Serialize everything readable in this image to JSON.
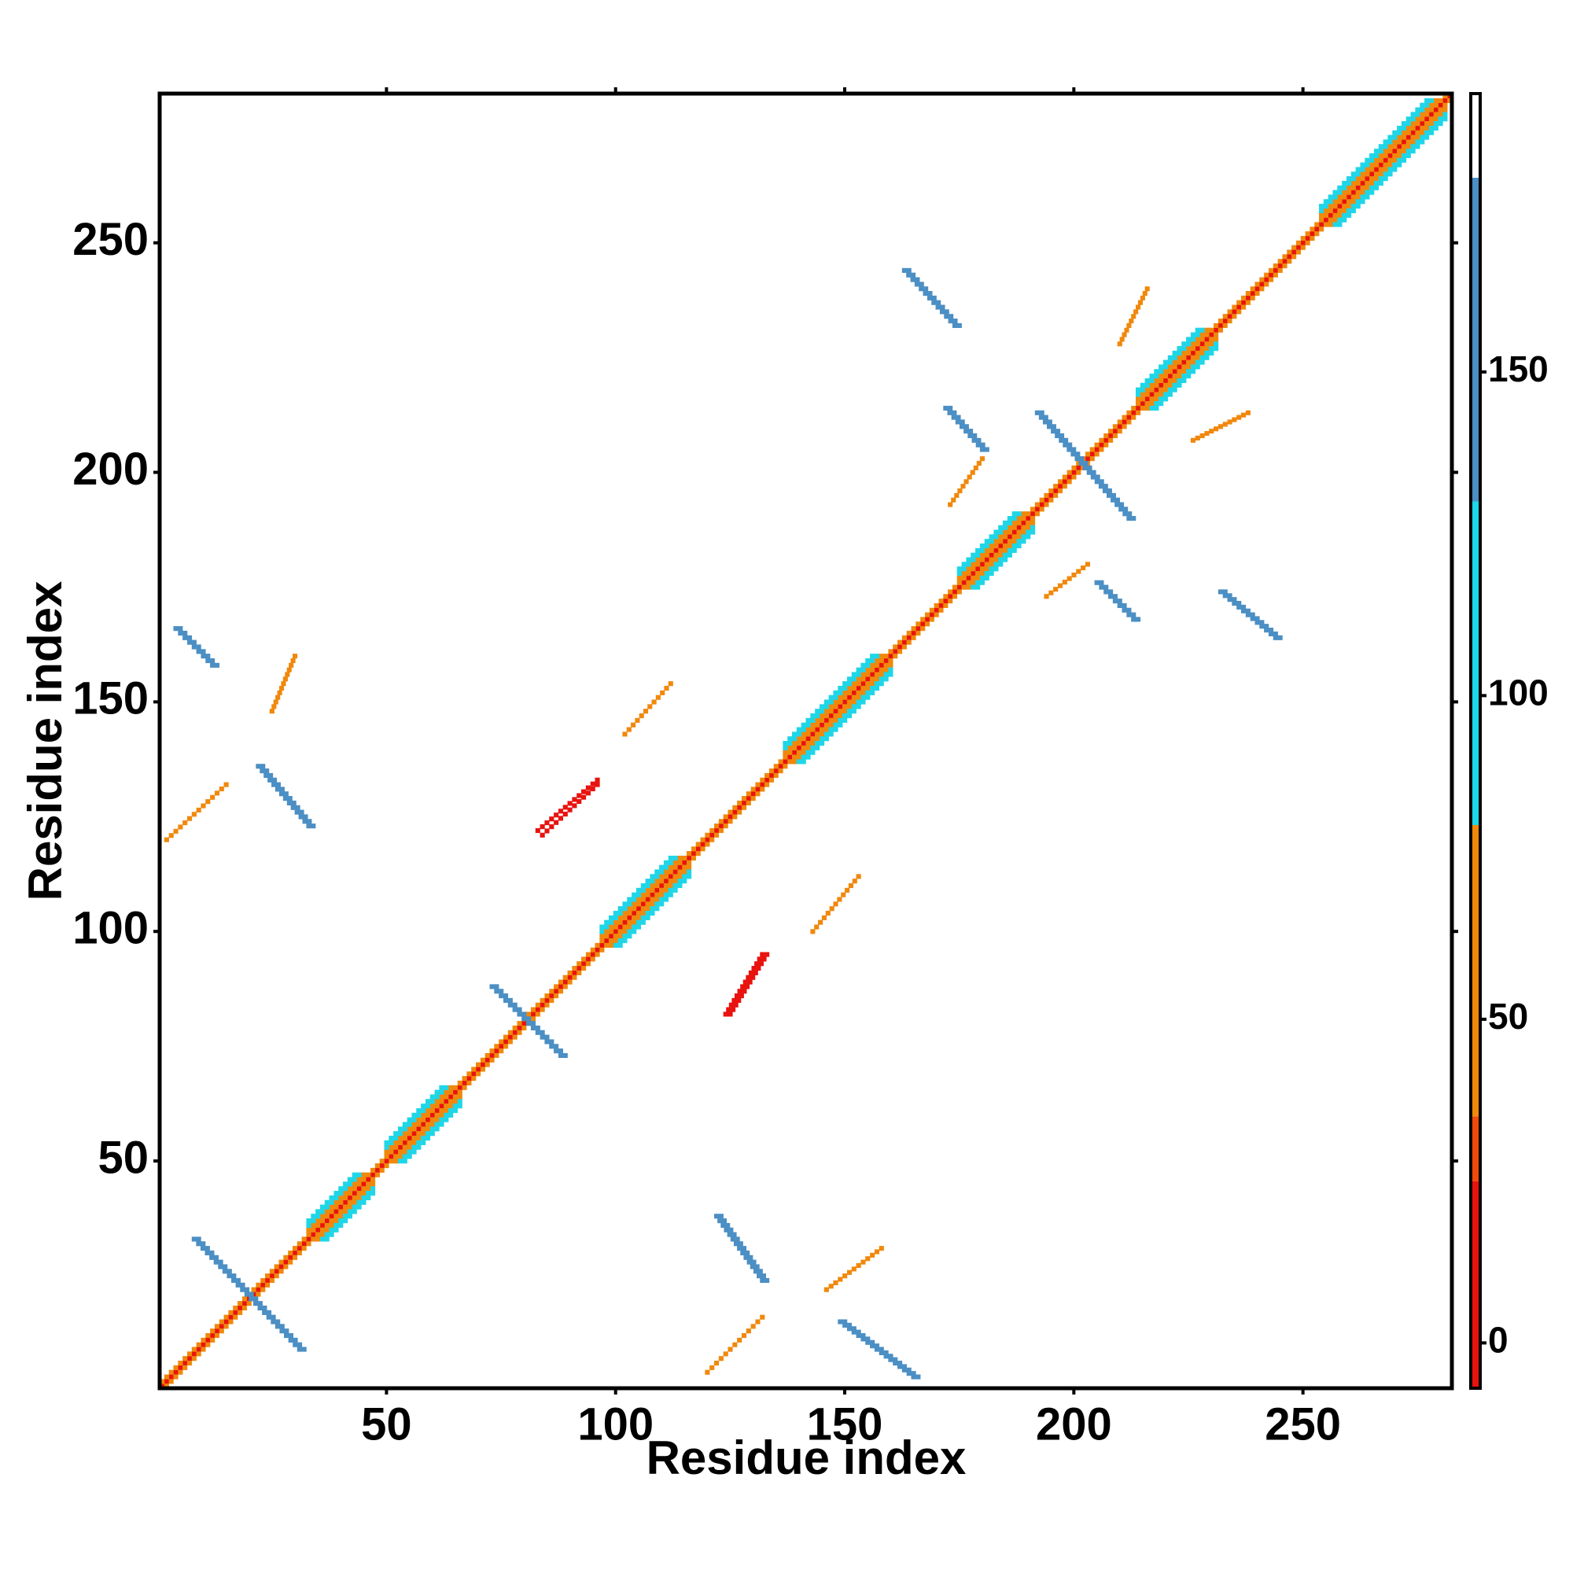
{
  "chart_data": {
    "type": "contact-map",
    "xlabel": "Residue index",
    "ylabel": "Residue index",
    "xlim": [
      1,
      282
    ],
    "ylim": [
      1,
      282
    ],
    "xticks": [
      50,
      100,
      150,
      200,
      250
    ],
    "yticks": [
      50,
      100,
      150,
      200,
      250
    ],
    "grid": false,
    "colorbar": {
      "lim": [
        -7,
        193
      ],
      "ticks": [
        0,
        50,
        100,
        150
      ],
      "segments": [
        {
          "range": [
            -7,
            25
          ],
          "color": "#e8130f"
        },
        {
          "range": [
            25,
            35
          ],
          "color": "#f04a0a"
        },
        {
          "range": [
            35,
            80
          ],
          "color": "#f0880c"
        },
        {
          "range": [
            80,
            130
          ],
          "color": "#1fd6e8"
        },
        {
          "range": [
            130,
            180
          ],
          "color": "#4b8fc4"
        },
        {
          "range": [
            180,
            193
          ],
          "color": "#ffffff"
        }
      ]
    },
    "features": [
      {
        "x": [
          1,
          282
        ],
        "y": [
          1,
          282
        ],
        "value": 0
      },
      {
        "x": [
          1,
          281
        ],
        "y": [
          2,
          282
        ],
        "value": 60
      },
      {
        "x": [
          2,
          282
        ],
        "y": [
          1,
          281
        ],
        "value": 60
      },
      {
        "x": [
          33,
          45
        ],
        "y": [
          35,
          47
        ],
        "value": 60
      },
      {
        "x": [
          35,
          47
        ],
        "y": [
          33,
          45
        ],
        "value": 60
      },
      {
        "x": [
          33,
          44
        ],
        "y": [
          36,
          47
        ],
        "value": 100
      },
      {
        "x": [
          36,
          47
        ],
        "y": [
          33,
          44
        ],
        "value": 100
      },
      {
        "x": [
          33,
          43
        ],
        "y": [
          37,
          47
        ],
        "value": 110
      },
      {
        "x": [
          37,
          47
        ],
        "y": [
          33,
          43
        ],
        "value": 110
      },
      {
        "x": [
          50,
          64
        ],
        "y": [
          52,
          66
        ],
        "value": 60
      },
      {
        "x": [
          52,
          66
        ],
        "y": [
          50,
          64
        ],
        "value": 60
      },
      {
        "x": [
          50,
          63
        ],
        "y": [
          53,
          66
        ],
        "value": 100
      },
      {
        "x": [
          53,
          66
        ],
        "y": [
          50,
          63
        ],
        "value": 100
      },
      {
        "x": [
          50,
          62
        ],
        "y": [
          54,
          66
        ],
        "value": 110
      },
      {
        "x": [
          54,
          66
        ],
        "y": [
          50,
          62
        ],
        "value": 110
      },
      {
        "x": [
          97,
          114
        ],
        "y": [
          99,
          116
        ],
        "value": 60
      },
      {
        "x": [
          99,
          116
        ],
        "y": [
          97,
          114
        ],
        "value": 60
      },
      {
        "x": [
          97,
          113
        ],
        "y": [
          100,
          116
        ],
        "value": 100
      },
      {
        "x": [
          100,
          116
        ],
        "y": [
          97,
          113
        ],
        "value": 100
      },
      {
        "x": [
          97,
          112
        ],
        "y": [
          101,
          116
        ],
        "value": 110
      },
      {
        "x": [
          101,
          116
        ],
        "y": [
          97,
          112
        ],
        "value": 110
      },
      {
        "x": [
          137,
          158
        ],
        "y": [
          139,
          160
        ],
        "value": 60
      },
      {
        "x": [
          139,
          160
        ],
        "y": [
          137,
          158
        ],
        "value": 60
      },
      {
        "x": [
          137,
          157
        ],
        "y": [
          140,
          160
        ],
        "value": 100
      },
      {
        "x": [
          140,
          160
        ],
        "y": [
          137,
          157
        ],
        "value": 100
      },
      {
        "x": [
          137,
          156
        ],
        "y": [
          141,
          160
        ],
        "value": 110
      },
      {
        "x": [
          141,
          160
        ],
        "y": [
          137,
          156
        ],
        "value": 110
      },
      {
        "x": [
          175,
          189
        ],
        "y": [
          177,
          191
        ],
        "value": 60
      },
      {
        "x": [
          177,
          191
        ],
        "y": [
          175,
          189
        ],
        "value": 60
      },
      {
        "x": [
          175,
          188
        ],
        "y": [
          178,
          191
        ],
        "value": 100
      },
      {
        "x": [
          178,
          191
        ],
        "y": [
          175,
          188
        ],
        "value": 100
      },
      {
        "x": [
          175,
          187
        ],
        "y": [
          179,
          191
        ],
        "value": 110
      },
      {
        "x": [
          179,
          191
        ],
        "y": [
          175,
          187
        ],
        "value": 110
      },
      {
        "x": [
          214,
          229
        ],
        "y": [
          216,
          231
        ],
        "value": 60
      },
      {
        "x": [
          216,
          231
        ],
        "y": [
          214,
          229
        ],
        "value": 60
      },
      {
        "x": [
          214,
          228
        ],
        "y": [
          217,
          231
        ],
        "value": 100
      },
      {
        "x": [
          217,
          231
        ],
        "y": [
          214,
          228
        ],
        "value": 100
      },
      {
        "x": [
          214,
          227
        ],
        "y": [
          218,
          231
        ],
        "value": 110
      },
      {
        "x": [
          218,
          231
        ],
        "y": [
          214,
          227
        ],
        "value": 110
      },
      {
        "x": [
          254,
          279
        ],
        "y": [
          256,
          281
        ],
        "value": 60
      },
      {
        "x": [
          256,
          281
        ],
        "y": [
          254,
          279
        ],
        "value": 60
      },
      {
        "x": [
          254,
          278
        ],
        "y": [
          257,
          281
        ],
        "value": 100
      },
      {
        "x": [
          257,
          281
        ],
        "y": [
          254,
          278
        ],
        "value": 100
      },
      {
        "x": [
          254,
          277
        ],
        "y": [
          258,
          281
        ],
        "value": 110
      },
      {
        "x": [
          258,
          281
        ],
        "y": [
          254,
          277
        ],
        "value": 110
      },
      {
        "x": [
          8,
          31
        ],
        "y": [
          33,
          9
        ],
        "value": 165
      },
      {
        "x": [
          9,
          32
        ],
        "y": [
          33,
          9
        ],
        "value": 165
      },
      {
        "x": [
          73,
          88
        ],
        "y": [
          88,
          73
        ],
        "value": 165
      },
      {
        "x": [
          74,
          89
        ],
        "y": [
          88,
          73
        ],
        "value": 165
      },
      {
        "x": [
          163,
          174
        ],
        "y": [
          244,
          232
        ],
        "value": 165
      },
      {
        "x": [
          164,
          175
        ],
        "y": [
          244,
          232
        ],
        "value": 165
      },
      {
        "x": [
          172,
          180
        ],
        "y": [
          214,
          205
        ],
        "value": 165
      },
      {
        "x": [
          173,
          181
        ],
        "y": [
          214,
          205
        ],
        "value": 165
      },
      {
        "x": [
          192,
          212
        ],
        "y": [
          213,
          190
        ],
        "value": 165
      },
      {
        "x": [
          193,
          213
        ],
        "y": [
          213,
          190
        ],
        "value": 165
      },
      {
        "x": [
          205,
          213
        ],
        "y": [
          176,
          168
        ],
        "value": 165
      },
      {
        "x": [
          206,
          214
        ],
        "y": [
          176,
          168
        ],
        "value": 165
      },
      {
        "x": [
          232,
          244
        ],
        "y": [
          174,
          164
        ],
        "value": 165
      },
      {
        "x": [
          233,
          245
        ],
        "y": [
          174,
          164
        ],
        "value": 165
      },
      {
        "x": [
          4,
          12
        ],
        "y": [
          166,
          158
        ],
        "value": 165
      },
      {
        "x": [
          5,
          13
        ],
        "y": [
          166,
          158
        ],
        "value": 165
      },
      {
        "x": [
          22,
          33
        ],
        "y": [
          136,
          123
        ],
        "value": 165
      },
      {
        "x": [
          23,
          34
        ],
        "y": [
          136,
          123
        ],
        "value": 165
      },
      {
        "x": [
          122,
          132
        ],
        "y": [
          38,
          24
        ],
        "value": 165
      },
      {
        "x": [
          123,
          133
        ],
        "y": [
          38,
          24
        ],
        "value": 165
      },
      {
        "x": [
          149,
          165
        ],
        "y": [
          15,
          3
        ],
        "value": 165
      },
      {
        "x": [
          150,
          166
        ],
        "y": [
          15,
          3
        ],
        "value": 165
      },
      {
        "x": [
          83,
          96
        ],
        "y": [
          122,
          133
        ],
        "value": 10
      },
      {
        "x": [
          84,
          96
        ],
        "y": [
          121,
          132
        ],
        "value": 10
      },
      {
        "x": [
          124,
          132
        ],
        "y": [
          82,
          95
        ],
        "value": 10
      },
      {
        "x": [
          125,
          133
        ],
        "y": [
          82,
          95
        ],
        "value": 10
      },
      {
        "x": [
          102,
          112
        ],
        "y": [
          143,
          154
        ],
        "value": 60
      },
      {
        "x": [
          143,
          153
        ],
        "y": [
          100,
          112
        ],
        "value": 60
      },
      {
        "x": [
          2,
          15
        ],
        "y": [
          120,
          132
        ],
        "value": 60
      },
      {
        "x": [
          25,
          30
        ],
        "y": [
          148,
          160
        ],
        "value": 55
      },
      {
        "x": [
          146,
          158
        ],
        "y": [
          22,
          31
        ],
        "value": 60
      },
      {
        "x": [
          120,
          132
        ],
        "y": [
          4,
          16
        ],
        "value": 55
      },
      {
        "x": [
          173,
          180
        ],
        "y": [
          193,
          203
        ],
        "value": 60
      },
      {
        "x": [
          194,
          203
        ],
        "y": [
          173,
          180
        ],
        "value": 60
      },
      {
        "x": [
          210,
          216
        ],
        "y": [
          228,
          240
        ],
        "value": 60
      },
      {
        "x": [
          226,
          238
        ],
        "y": [
          207,
          213
        ],
        "value": 60
      }
    ]
  }
}
